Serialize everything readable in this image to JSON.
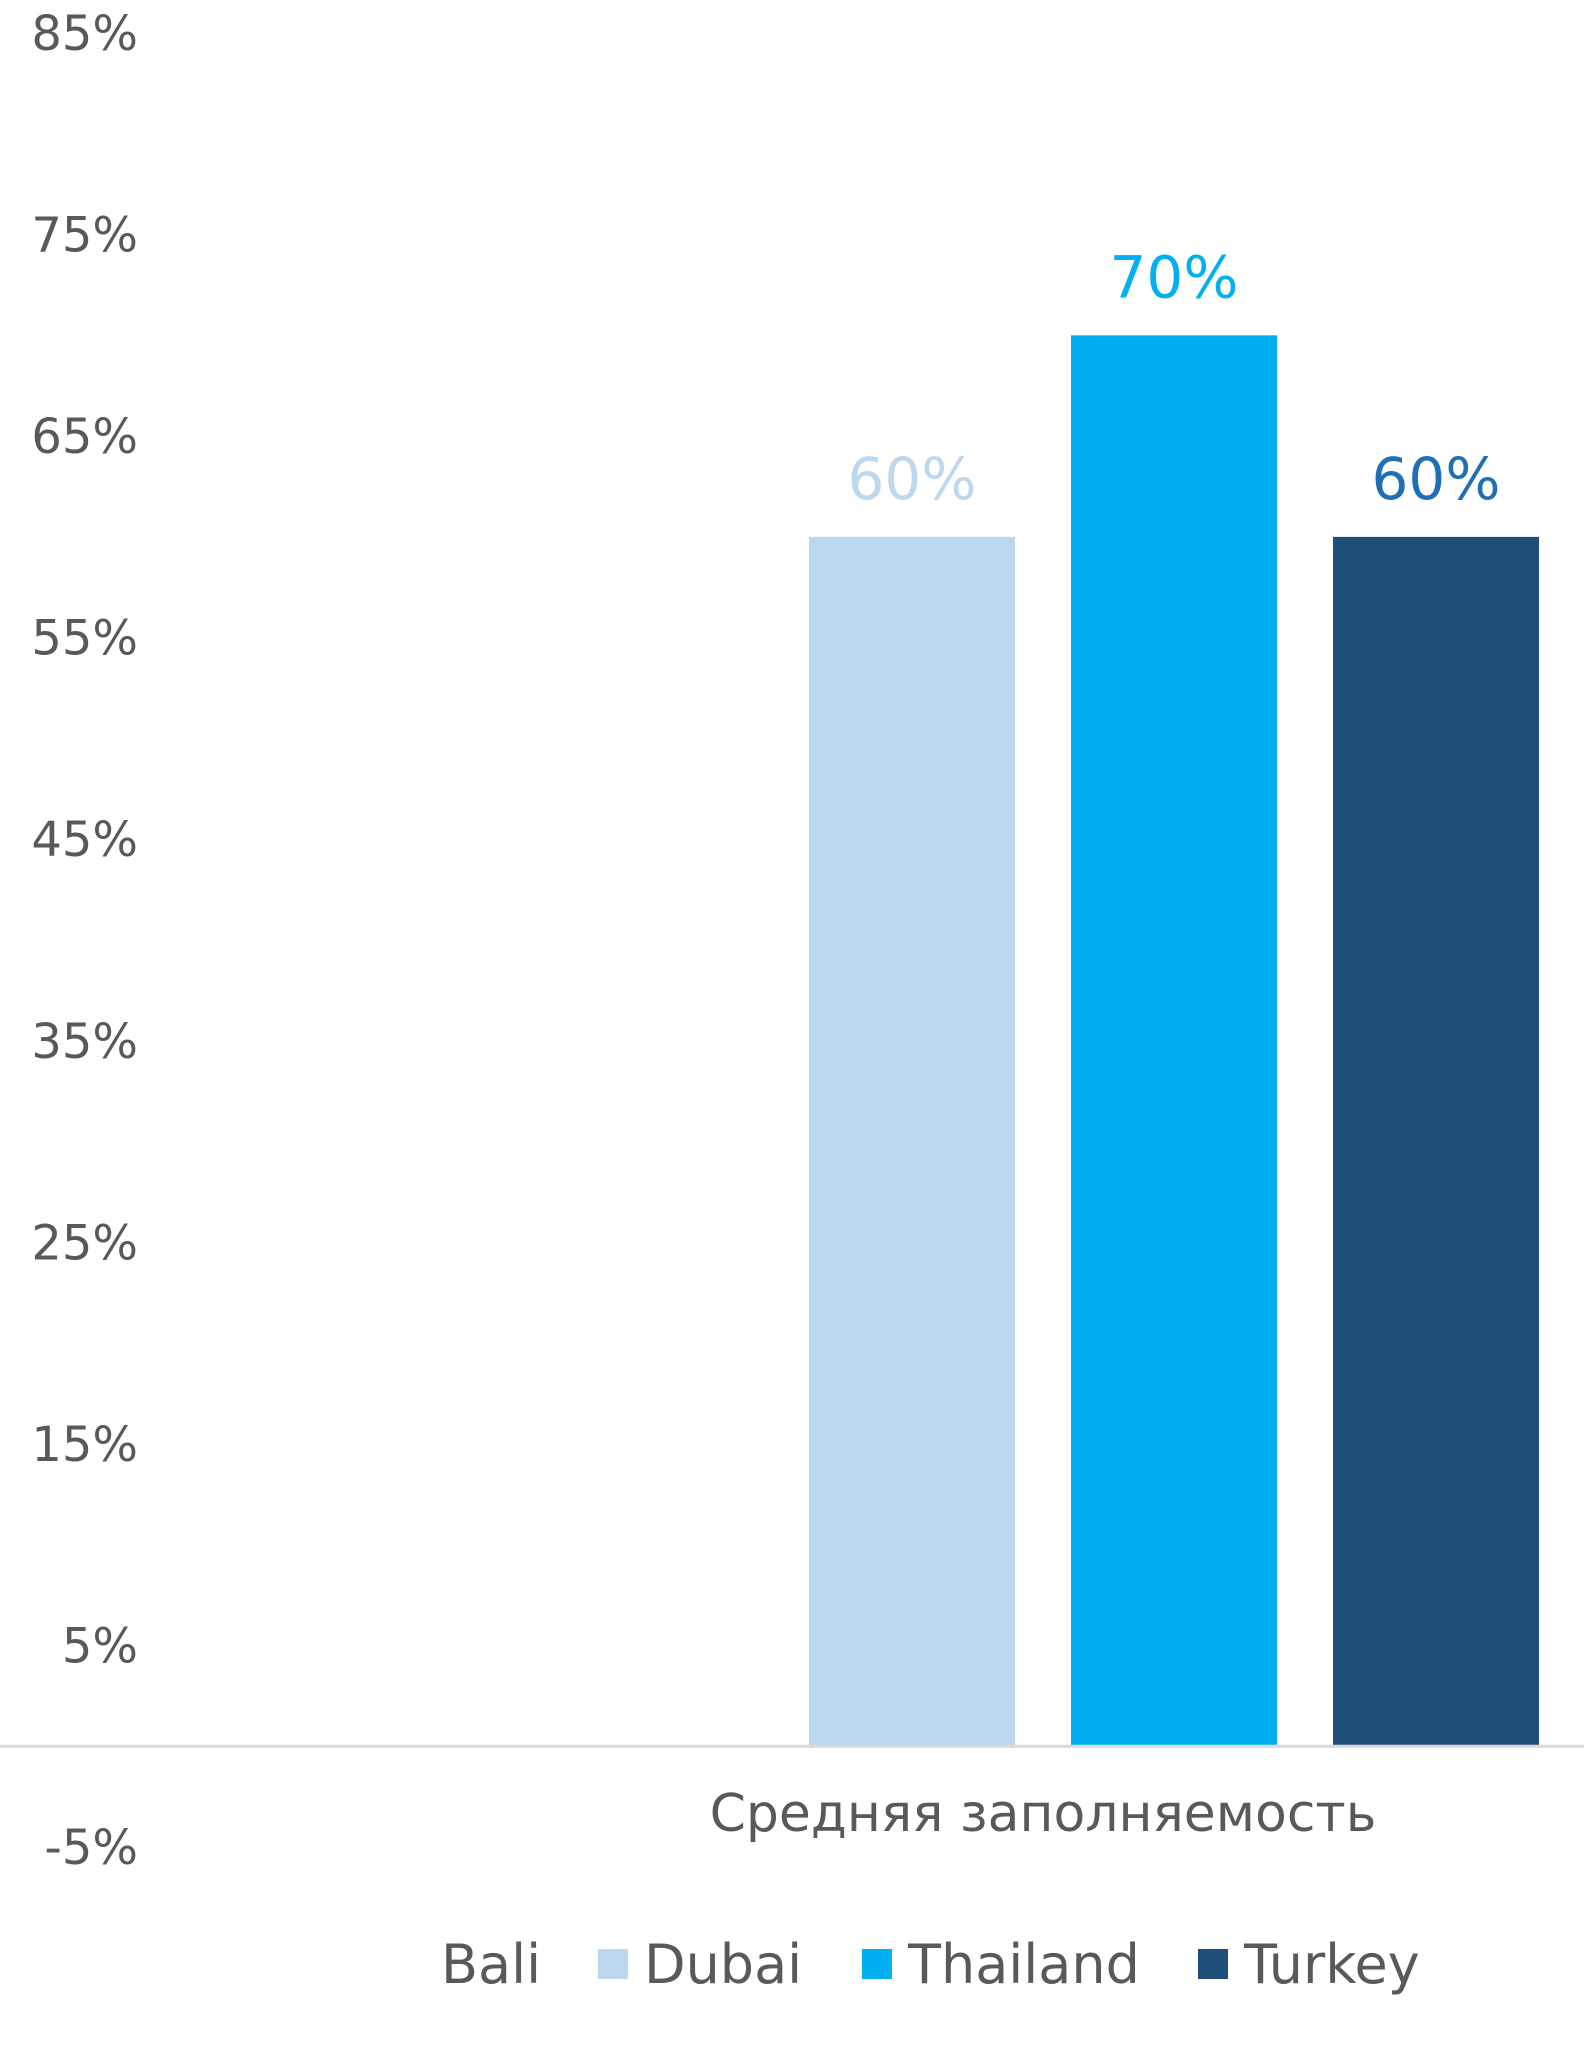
{
  "chart_data": {
    "type": "bar",
    "categories": [
      "Средняя заполняемость"
    ],
    "series": [
      {
        "name": "Bali",
        "values": [
          null
        ],
        "color": "#9dc3e6",
        "label_color": "#9dc3e6"
      },
      {
        "name": "Dubai",
        "values": [
          0.6
        ],
        "color": "#bdd7ee",
        "label_color": "#bdd7ee"
      },
      {
        "name": "Thailand",
        "values": [
          0.7
        ],
        "color": "#00b0f0",
        "label_color": "#00b0f0"
      },
      {
        "name": "Turkey",
        "values": [
          0.6
        ],
        "color": "#1f4e79",
        "label_color": "#1f6fb5"
      }
    ],
    "data_labels": [
      "",
      "60%",
      "70%",
      "60%"
    ],
    "yticks": [
      "85%",
      "75%",
      "65%",
      "55%",
      "45%",
      "35%",
      "25%",
      "15%",
      "5%",
      "-5%"
    ],
    "ytick_values": [
      0.85,
      0.75,
      0.65,
      0.55,
      0.45,
      0.35,
      0.25,
      0.15,
      0.05,
      -0.05
    ],
    "ylim": [
      -0.05,
      0.85
    ],
    "baseline": 0,
    "legend_position": "bottom",
    "grid": false
  }
}
